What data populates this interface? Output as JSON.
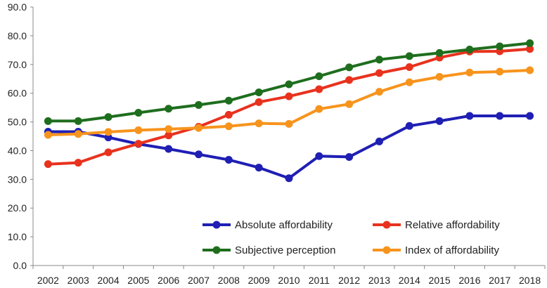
{
  "chart_data": {
    "type": "line",
    "title": "",
    "xlabel": "",
    "ylabel": "",
    "categories": [
      "2002",
      "2003",
      "2004",
      "2005",
      "2006",
      "2007",
      "2008",
      "2009",
      "2010",
      "2011",
      "2012",
      "2013",
      "2014",
      "2015",
      "2016",
      "2017",
      "2018"
    ],
    "ylim": [
      0,
      90
    ],
    "yticks": [
      "0.0",
      "10.0",
      "20.0",
      "30.0",
      "40.0",
      "50.0",
      "60.0",
      "70.0",
      "80.0",
      "90.0"
    ],
    "grid": false,
    "legend_position": "bottom-right",
    "series": [
      {
        "name": "Absolute affordability",
        "color": "#1f1fb4",
        "values": [
          46.6,
          46.6,
          44.6,
          42.3,
          40.6,
          38.7,
          36.8,
          34.1,
          30.4,
          38.1,
          37.8,
          43.2,
          48.6,
          50.3,
          52.1,
          52.1,
          52.1
        ]
      },
      {
        "name": "Relative affordability",
        "color": "#e8321e",
        "values": [
          35.3,
          35.8,
          39.4,
          42.4,
          45.3,
          48.3,
          52.5,
          56.9,
          58.9,
          61.4,
          64.6,
          67.0,
          69.1,
          72.4,
          74.5,
          74.6,
          75.4
        ]
      },
      {
        "name": "Subjective perception",
        "color": "#1e6e1e",
        "values": [
          50.3,
          50.3,
          51.7,
          53.2,
          54.6,
          55.9,
          57.4,
          60.3,
          63.1,
          65.9,
          69.0,
          71.7,
          72.9,
          74.0,
          75.2,
          76.3,
          77.4
        ]
      },
      {
        "name": "Index of affordability",
        "color": "#f7941d",
        "values": [
          45.5,
          45.8,
          46.5,
          47.1,
          47.5,
          47.9,
          48.5,
          49.5,
          49.3,
          54.5,
          56.2,
          60.5,
          63.8,
          65.7,
          67.2,
          67.5,
          68.0
        ]
      }
    ]
  }
}
